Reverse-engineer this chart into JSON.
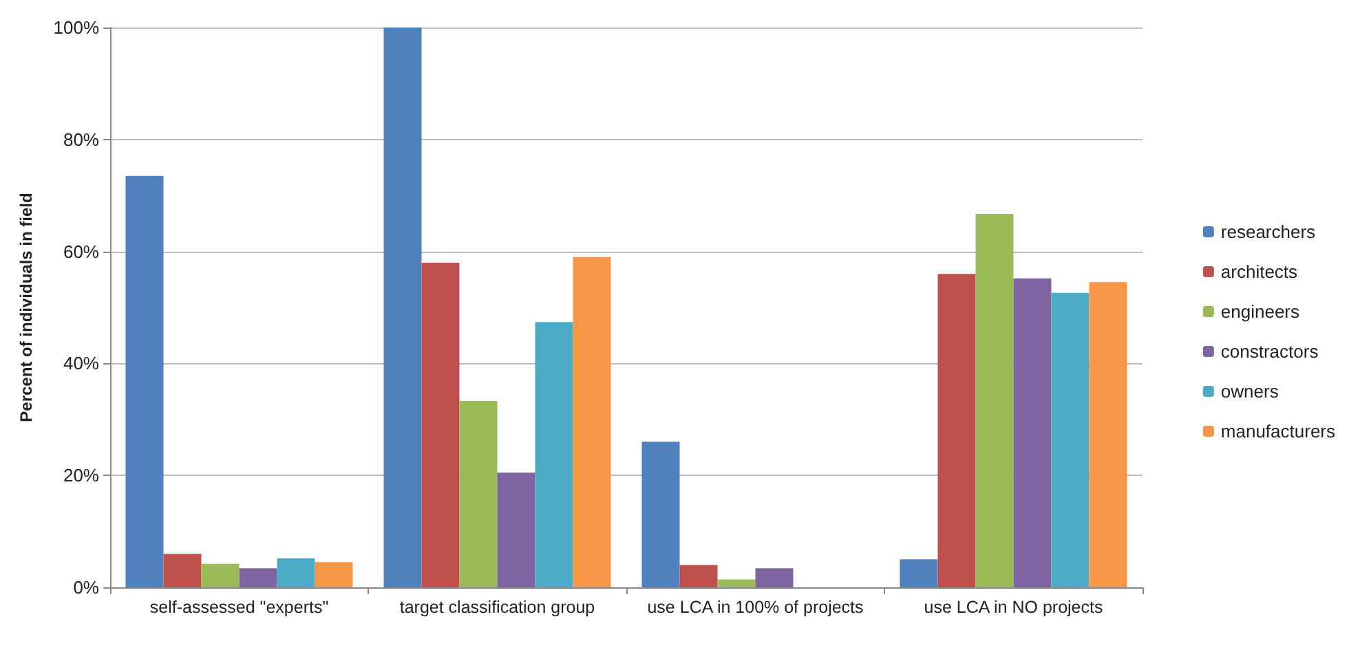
{
  "chart_data": {
    "type": "bar",
    "ylabel": "Percent of individuals in field",
    "categories": [
      "self-assessed \"experts\"",
      "target classification group",
      "use LCA in 100% of projects",
      "use LCA in NO projects"
    ],
    "series": [
      {
        "name": "researchers",
        "color": "#4f81bd",
        "values": [
          73.5,
          100,
          26,
          5
        ]
      },
      {
        "name": "architects",
        "color": "#c0504d",
        "values": [
          6,
          58,
          4,
          56
        ]
      },
      {
        "name": "engineers",
        "color": "#9bbb59",
        "values": [
          4.2,
          33.3,
          1.4,
          66.7
        ]
      },
      {
        "name": "constractors",
        "color": "#8064a2",
        "values": [
          3.4,
          20.5,
          3.4,
          55.2
        ]
      },
      {
        "name": "owners",
        "color": "#4bacc6",
        "values": [
          5.2,
          47.4,
          0,
          52.6
        ]
      },
      {
        "name": "manufacturers",
        "color": "#f79646",
        "values": [
          4.5,
          59,
          0,
          54.5
        ]
      }
    ],
    "ylim": [
      0,
      100
    ],
    "yticks": [
      {
        "value": 0,
        "label": "0%"
      },
      {
        "value": 20,
        "label": "20%"
      },
      {
        "value": 40,
        "label": "40%"
      },
      {
        "value": 60,
        "label": "60%"
      },
      {
        "value": 80,
        "label": "80%"
      },
      {
        "value": 100,
        "label": "100%"
      }
    ],
    "grid": "y",
    "legend": "right"
  }
}
